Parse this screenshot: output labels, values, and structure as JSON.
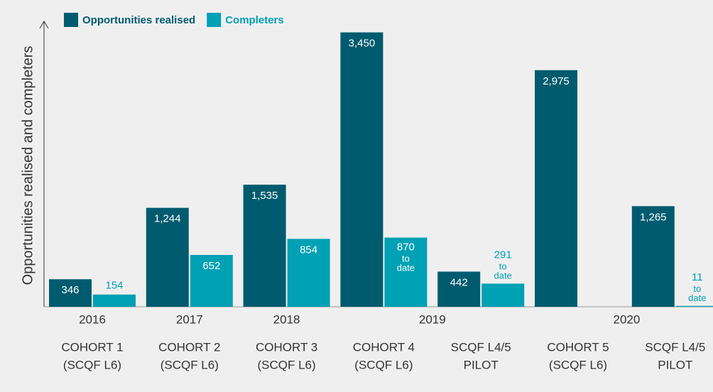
{
  "chart_data": {
    "type": "bar",
    "y_label": "Opportunities realised and completers",
    "x_groups": [
      {
        "label": "2016",
        "count": 1
      },
      {
        "label": "2017",
        "count": 1
      },
      {
        "label": "2018",
        "count": 1
      },
      {
        "label": "2019",
        "count": 2
      },
      {
        "label": "2020",
        "count": 2
      }
    ],
    "categories": [
      [
        "COHORT 1",
        "(SCQF L6)"
      ],
      [
        "COHORT 2",
        "(SCQF L6)"
      ],
      [
        "COHORT 3",
        "(SCQF L6)"
      ],
      [
        "COHORT 4",
        "(SCQF L6)"
      ],
      [
        "SCQF L4/5",
        "PILOT"
      ],
      [
        "COHORT 5",
        "(SCQF L6)"
      ],
      [
        "SCQF L4/5",
        "PILOT"
      ]
    ],
    "series": [
      {
        "name": "Opportunities realised",
        "color": "#005b6e",
        "values": [
          346,
          1244,
          1535,
          3450,
          442,
          2975,
          1265
        ],
        "value_labels": [
          "346",
          "1,244",
          "1,535",
          "3,450",
          "442",
          "2,975",
          "1,265"
        ]
      },
      {
        "name": "Completers",
        "color": "#00a0b5",
        "values": [
          154,
          652,
          854,
          870,
          291,
          null,
          11
        ],
        "value_labels": [
          "154",
          "652",
          "854",
          "870 to date",
          "291 to date",
          null,
          "11 to date"
        ]
      }
    ],
    "ylim": [
      0,
      3500
    ],
    "legend": "top-left"
  }
}
